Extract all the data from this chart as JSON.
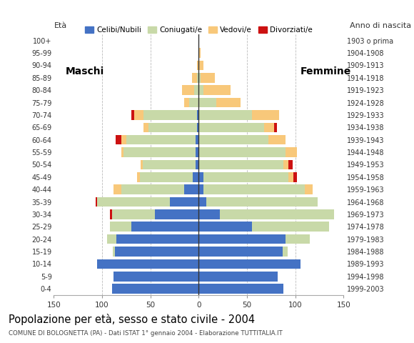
{
  "age_groups": [
    "0-4",
    "5-9",
    "10-14",
    "15-19",
    "20-24",
    "25-29",
    "30-34",
    "35-39",
    "40-44",
    "45-49",
    "50-54",
    "55-59",
    "60-64",
    "65-69",
    "70-74",
    "75-79",
    "80-84",
    "85-89",
    "90-94",
    "95-99",
    "100+"
  ],
  "birth_years": [
    "1999-2003",
    "1994-1998",
    "1989-1993",
    "1984-1988",
    "1979-1983",
    "1974-1978",
    "1969-1973",
    "1964-1968",
    "1959-1963",
    "1954-1958",
    "1949-1953",
    "1944-1948",
    "1939-1943",
    "1934-1938",
    "1929-1933",
    "1924-1928",
    "1919-1923",
    "1914-1918",
    "1909-1913",
    "1904-1908",
    "1903 o prima"
  ],
  "males": {
    "celibi": [
      90,
      88,
      105,
      87,
      85,
      70,
      45,
      30,
      15,
      6,
      3,
      3,
      3,
      2,
      2,
      0,
      0,
      0,
      0,
      0,
      0
    ],
    "coniugati": [
      0,
      0,
      0,
      2,
      10,
      22,
      45,
      75,
      65,
      55,
      55,
      75,
      72,
      50,
      55,
      10,
      5,
      2,
      0,
      0,
      0
    ],
    "vedovi": [
      0,
      0,
      0,
      0,
      0,
      0,
      0,
      0,
      8,
      3,
      2,
      2,
      5,
      5,
      10,
      5,
      12,
      5,
      2,
      0,
      0
    ],
    "divorziati": [
      0,
      0,
      0,
      0,
      0,
      0,
      2,
      2,
      0,
      0,
      0,
      0,
      6,
      0,
      3,
      0,
      0,
      0,
      0,
      0,
      0
    ]
  },
  "females": {
    "nubili": [
      88,
      82,
      105,
      87,
      90,
      55,
      22,
      8,
      5,
      5,
      0,
      0,
      0,
      0,
      0,
      0,
      0,
      0,
      0,
      0,
      0
    ],
    "coniugate": [
      0,
      0,
      0,
      5,
      25,
      80,
      118,
      115,
      105,
      88,
      88,
      90,
      72,
      68,
      55,
      18,
      5,
      2,
      0,
      0,
      0
    ],
    "vedove": [
      0,
      0,
      0,
      0,
      0,
      0,
      0,
      0,
      8,
      5,
      5,
      12,
      18,
      10,
      28,
      25,
      28,
      15,
      5,
      2,
      0
    ],
    "divorziate": [
      0,
      0,
      0,
      0,
      0,
      0,
      0,
      0,
      0,
      4,
      4,
      0,
      0,
      3,
      0,
      0,
      0,
      0,
      0,
      0,
      0
    ]
  },
  "colors": {
    "celibi": "#4472c4",
    "coniugati": "#c8d9a8",
    "vedovi": "#f8c87a",
    "divorziati": "#cc1111"
  },
  "xlim": 150,
  "xticks": [
    -150,
    -100,
    -50,
    0,
    50,
    100,
    150
  ],
  "title": "Popolazione per età, sesso e stato civile - 2004",
  "subtitle": "COMUNE DI BOLOGNETTA (PA) - Dati ISTAT 1° gennaio 2004 - Elaborazione TUTTITALIA.IT",
  "legend_labels": [
    "Celibi/Nubili",
    "Coniugati/e",
    "Vedovi/e",
    "Divorziati/e"
  ],
  "maschi_label": "Maschi",
  "femmine_label": "Femmine",
  "eta_label": "Età",
  "anno_label": "Anno di nascita",
  "background_color": "#ffffff",
  "grid_color": "#bbbbbb",
  "bar_height": 0.78
}
